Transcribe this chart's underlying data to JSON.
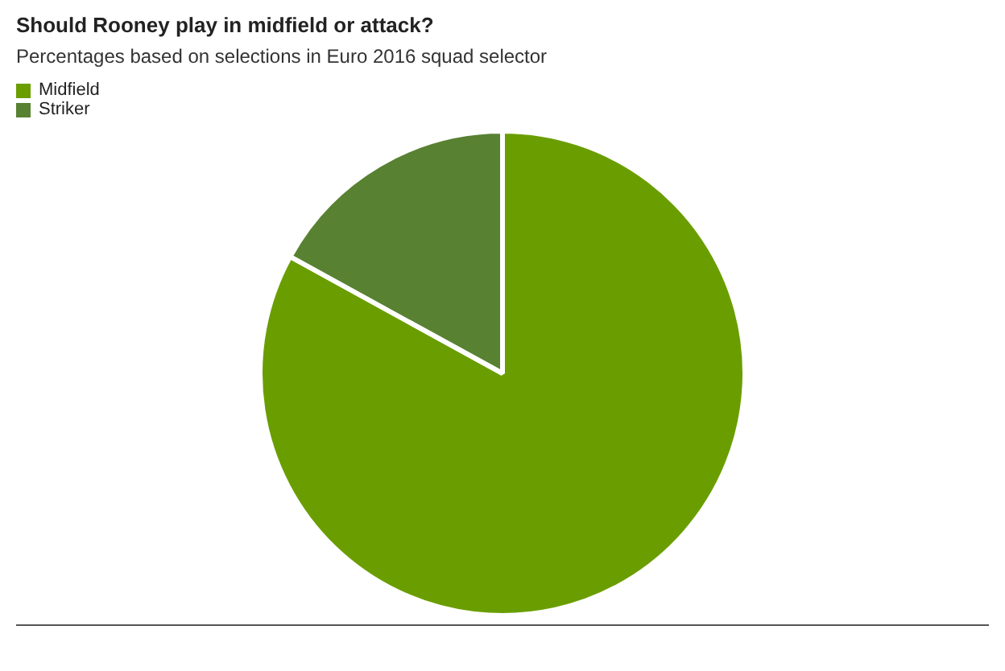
{
  "chart_data": {
    "type": "pie",
    "title": "Should Rooney play in midfield or attack?",
    "subtitle": "Percentages based on selections in Euro 2016 squad selector",
    "categories": [
      "Midfield",
      "Striker"
    ],
    "values": [
      83,
      17
    ],
    "colors": [
      "#6a9e00",
      "#588132"
    ],
    "legend": "top left"
  }
}
